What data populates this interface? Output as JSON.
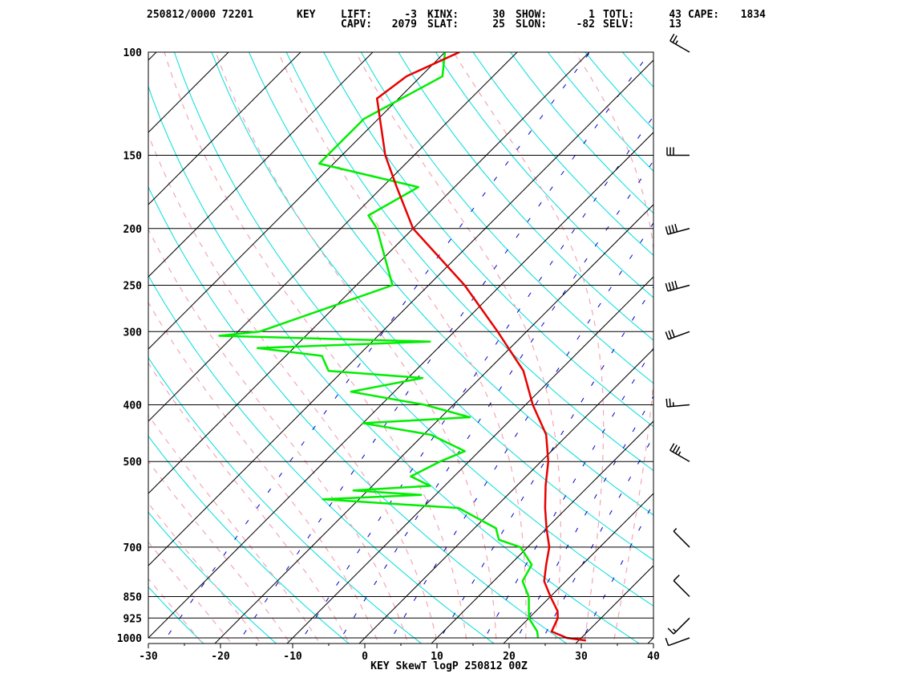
{
  "chart_data": {
    "type": "skew-t log-p",
    "header": {
      "row1": [
        {
          "label": "250812/0000 72201",
          "value": ""
        },
        {
          "label": "KEY",
          "value": ""
        },
        {
          "label": "LIFT:",
          "value": "-3"
        },
        {
          "label": "KINX:",
          "value": "30"
        },
        {
          "label": "SHOW:",
          "value": "1"
        },
        {
          "label": "TOTL:",
          "value": "43"
        },
        {
          "label": "CAPE:",
          "value": "1834"
        }
      ],
      "row2": [
        {
          "label": "CAPV:",
          "value": "2079"
        },
        {
          "label": "SLAT:",
          "value": "25"
        },
        {
          "label": "SLON:",
          "value": "-82"
        },
        {
          "label": "SELV:",
          "value": "13"
        }
      ]
    },
    "footer": "KEY SkewT logP 250812 00Z",
    "pressure_levels": [
      100,
      150,
      200,
      250,
      300,
      400,
      500,
      700,
      850,
      925,
      1000
    ],
    "x_ticks": [
      -30,
      -20,
      -10,
      0,
      10,
      20,
      30,
      40
    ],
    "xlim": [
      -30,
      40
    ],
    "plim": [
      1020,
      100
    ],
    "temperature": [
      {
        "p": 1010,
        "t": 31
      },
      {
        "p": 1000,
        "t": 28
      },
      {
        "p": 975,
        "t": 25
      },
      {
        "p": 925,
        "t": 24
      },
      {
        "p": 900,
        "t": 23
      },
      {
        "p": 850,
        "t": 20
      },
      {
        "p": 800,
        "t": 17
      },
      {
        "p": 750,
        "t": 15
      },
      {
        "p": 700,
        "t": 13
      },
      {
        "p": 650,
        "t": 10
      },
      {
        "p": 600,
        "t": 7
      },
      {
        "p": 550,
        "t": 4
      },
      {
        "p": 500,
        "t": 1
      },
      {
        "p": 450,
        "t": -3
      },
      {
        "p": 400,
        "t": -9
      },
      {
        "p": 350,
        "t": -15
      },
      {
        "p": 300,
        "t": -24
      },
      {
        "p": 250,
        "t": -35
      },
      {
        "p": 200,
        "t": -50
      },
      {
        "p": 170,
        "t": -58
      },
      {
        "p": 150,
        "t": -64
      },
      {
        "p": 120,
        "t": -73
      },
      {
        "p": 110,
        "t": -72
      },
      {
        "p": 100,
        "t": -68
      }
    ],
    "dewpoint": [
      {
        "p": 1000,
        "t": 24
      },
      {
        "p": 975,
        "t": 23
      },
      {
        "p": 925,
        "t": 20
      },
      {
        "p": 850,
        "t": 17
      },
      {
        "p": 800,
        "t": 14
      },
      {
        "p": 750,
        "t": 13
      },
      {
        "p": 700,
        "t": 9
      },
      {
        "p": 680,
        "t": 5
      },
      {
        "p": 650,
        "t": 3
      },
      {
        "p": 600,
        "t": -5
      },
      {
        "p": 580,
        "t": -25
      },
      {
        "p": 570,
        "t": -12
      },
      {
        "p": 560,
        "t": -22
      },
      {
        "p": 550,
        "t": -12
      },
      {
        "p": 530,
        "t": -16
      },
      {
        "p": 500,
        "t": -14
      },
      {
        "p": 480,
        "t": -12
      },
      {
        "p": 450,
        "t": -19
      },
      {
        "p": 430,
        "t": -30
      },
      {
        "p": 420,
        "t": -16
      },
      {
        "p": 400,
        "t": -24
      },
      {
        "p": 380,
        "t": -36
      },
      {
        "p": 360,
        "t": -28
      },
      {
        "p": 350,
        "t": -42
      },
      {
        "p": 330,
        "t": -45
      },
      {
        "p": 320,
        "t": -55
      },
      {
        "p": 312,
        "t": -32
      },
      {
        "p": 305,
        "t": -62
      },
      {
        "p": 300,
        "t": -57
      },
      {
        "p": 250,
        "t": -45
      },
      {
        "p": 200,
        "t": -55
      },
      {
        "p": 190,
        "t": -58
      },
      {
        "p": 170,
        "t": -55
      },
      {
        "p": 155,
        "t": -72
      },
      {
        "p": 130,
        "t": -72
      },
      {
        "p": 110,
        "t": -67
      },
      {
        "p": 100,
        "t": -70
      }
    ],
    "wind_barbs": [
      {
        "p": 100,
        "speed_kt": 25,
        "dir_deg": 300
      },
      {
        "p": 150,
        "speed_kt": 30,
        "dir_deg": 270
      },
      {
        "p": 200,
        "speed_kt": 40,
        "dir_deg": 255
      },
      {
        "p": 250,
        "speed_kt": 40,
        "dir_deg": 255
      },
      {
        "p": 300,
        "speed_kt": 30,
        "dir_deg": 250
      },
      {
        "p": 400,
        "speed_kt": 25,
        "dir_deg": 265
      },
      {
        "p": 500,
        "speed_kt": 35,
        "dir_deg": 300
      },
      {
        "p": 700,
        "speed_kt": 5,
        "dir_deg": 315
      },
      {
        "p": 850,
        "speed_kt": 10,
        "dir_deg": 315
      },
      {
        "p": 925,
        "speed_kt": 15,
        "dir_deg": 225
      },
      {
        "p": 1000,
        "speed_kt": 10,
        "dir_deg": 250
      }
    ],
    "colors": {
      "temperature": "#e80000",
      "dewpoint": "#00ee00",
      "dry_adiabat": "#00dddd",
      "moist_adiabat": "#f4a6b2",
      "mixing_ratio": "#0000cc",
      "isotherm": "#000000"
    }
  }
}
